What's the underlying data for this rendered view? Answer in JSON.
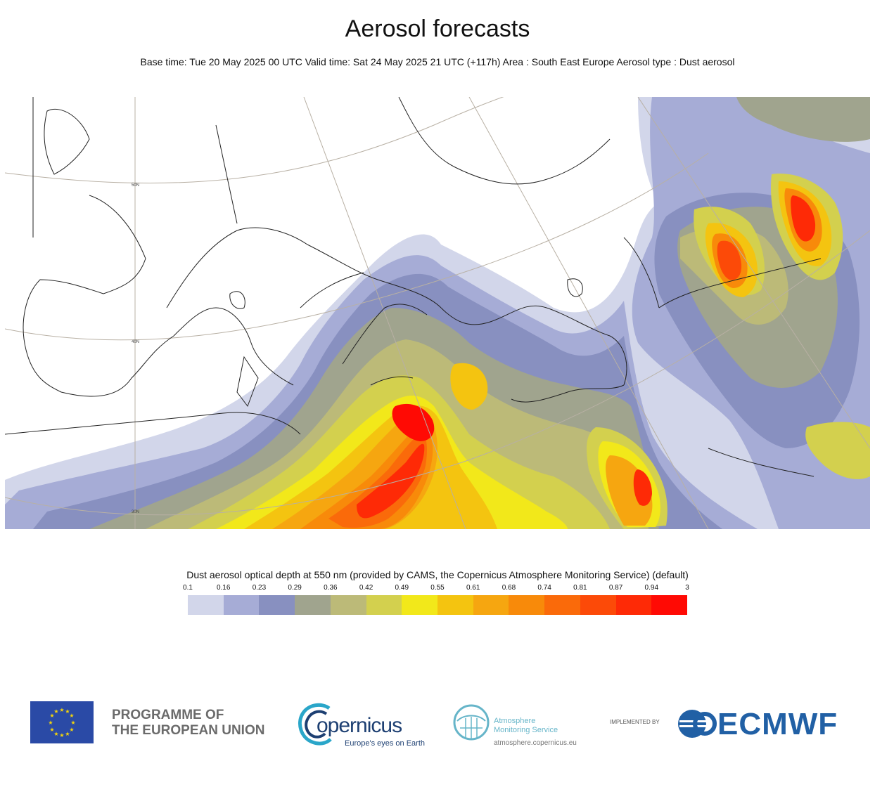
{
  "header": {
    "title": "Aerosol forecasts",
    "subtitle": "Base time: Tue 20 May 2025 00 UTC Valid time: Sat 24 May 2025 21 UTC (+117h) Area : South East Europe Aerosol type : Dust aerosol"
  },
  "map": {
    "latitude_labels": [
      "50N",
      "40N",
      "30N"
    ]
  },
  "legend": {
    "title": "Dust aerosol optical depth at 550 nm (provided by CAMS, the Copernicus Atmosphere Monitoring Service) (default)",
    "ticks": [
      "0.1",
      "0.16",
      "0.23",
      "0.29",
      "0.36",
      "0.42",
      "0.49",
      "0.55",
      "0.61",
      "0.68",
      "0.74",
      "0.81",
      "0.87",
      "0.94",
      "3"
    ],
    "colors": [
      "#d2d6ea",
      "#a6acd6",
      "#8890c0",
      "#a0a48e",
      "#bcba78",
      "#d3d04e",
      "#f2e81a",
      "#f4c410",
      "#f6a610",
      "#f88a0a",
      "#fa6a0a",
      "#fc4a08",
      "#fe2a06",
      "#ff0a04"
    ]
  },
  "footer": {
    "eu_line1": "PROGRAMME OF",
    "eu_line2": "THE EUROPEAN UNION",
    "copernicus_word": "opernicus",
    "copernicus_tagline": "Europe's eyes on Earth",
    "cams_line1": "Atmosphere",
    "cams_line2": "Monitoring Service",
    "cams_url": "atmosphere.copernicus.eu",
    "implemented_by": "IMPLEMENTED BY",
    "ecmwf_word": "ECMWF"
  }
}
